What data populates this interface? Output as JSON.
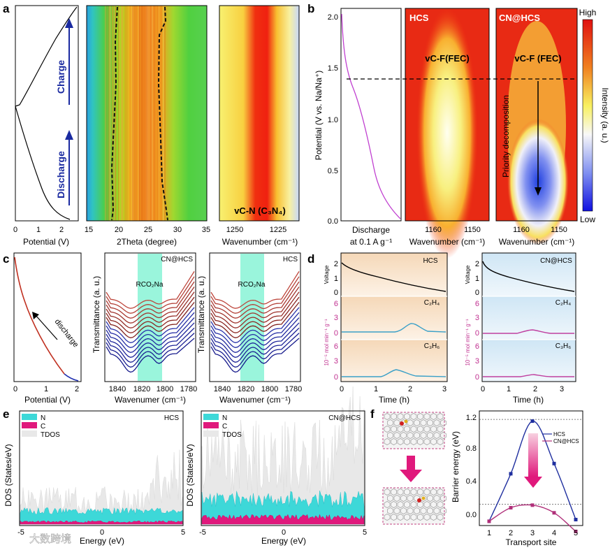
{
  "panels": {
    "a": {
      "label": "a",
      "charge": "Charge",
      "discharge": "Discharge",
      "xlabel1": "Potential (V)",
      "xticks1": [
        "0",
        "1",
        "2"
      ],
      "xlabel2": "2Theta (degree)",
      "xticks2": [
        "15",
        "20",
        "25",
        "30",
        "35"
      ],
      "xlabel3": "Wavenumber (cm⁻¹)",
      "xticks3": [
        "1250",
        "1225"
      ],
      "annot": "vC-N (C₃N₄)"
    },
    "b": {
      "label": "b",
      "ylabel": "Potential (V vs. Na/Na⁺)",
      "yticks": [
        "0.0",
        "0.5",
        "1.0",
        "1.5",
        "2.0"
      ],
      "x1": "Discharge",
      "x1b": "at 0.1 A g⁻¹",
      "hcs": "HCS",
      "cnhcs": "CN@HCS",
      "vcf1": "vC-F(FEC)",
      "vcf2": "vC-F (FEC)",
      "priority": "Priority decomposition",
      "xlabel": "Wavenumber (cm⁻¹)",
      "xticks": [
        "1160",
        "1150"
      ],
      "cbar_high": "High",
      "cbar_low": "Low",
      "cbar_label": "Intensity (a. u.)"
    },
    "c": {
      "label": "c",
      "discharge": "discharge",
      "xlabel1": "Potential (V)",
      "xticks1": [
        "0",
        "1",
        "2"
      ],
      "ylabel": "Transmittance (a. u.)",
      "xlabel2": "Wavenumer (cm⁻¹)",
      "xticks2": [
        "1840",
        "1820",
        "1800",
        "1780"
      ],
      "rco2na": "RCO₂Na",
      "t1": "CN@HCS",
      "t2": "HCS"
    },
    "d": {
      "label": "d",
      "t1": "HCS",
      "t2": "CN@HCS",
      "voltage": "Voltage",
      "vticks": [
        "2",
        "1",
        "0"
      ],
      "rateticks": [
        "6",
        "3",
        "0"
      ],
      "ratelabel": "10⁻⁵ mol min⁻¹ g⁻¹",
      "c2h4": "C₂H₄",
      "c3h6": "C₃H₆",
      "xlabel": "Time (h)",
      "xticks1": [
        "0",
        "1",
        "2",
        "3"
      ],
      "xticks2": [
        "0",
        "1",
        "2",
        "3"
      ]
    },
    "e": {
      "label": "e",
      "t1": "HCS",
      "t2": "CN@HCS",
      "n": "N",
      "c": "C",
      "tdos": "TDOS",
      "ylabel": "DOS (States/eV)",
      "xlabel": "Energy (eV)",
      "xticks": [
        "-5",
        "0",
        "5"
      ]
    },
    "f": {
      "label": "f",
      "ylabel": "Barrier energy (eV)",
      "xlabel": "Transport site",
      "yticks": [
        "0.0",
        "0.4",
        "0.8",
        "1.2"
      ],
      "xticks": [
        "1",
        "2",
        "3",
        "4",
        "5"
      ],
      "leg_hcs": "HCS",
      "leg_cnhcs": "CN@HCS"
    }
  },
  "watermark": "大数跨境",
  "colors": {
    "hcs": "#1f2f9f",
    "cnhcs": "#b0307a",
    "magenta": "#e0197c",
    "cyan": "#3dd8d8",
    "teal_band": "#9af5dc",
    "purple": "#c040d0"
  },
  "chart_data": [
    {
      "type": "line",
      "panel": "f",
      "xlabel": "Transport site",
      "ylabel": "Barrier energy (eV)",
      "ylim": [
        -0.05,
        1.3
      ],
      "x": [
        1,
        2,
        3,
        4,
        5
      ],
      "series": [
        {
          "name": "HCS",
          "values": [
            0.0,
            0.56,
            1.18,
            0.68,
            0.02
          ]
        },
        {
          "name": "CN@HCS",
          "values": [
            0.0,
            0.16,
            0.19,
            0.1,
            -0.12
          ]
        }
      ]
    }
  ]
}
